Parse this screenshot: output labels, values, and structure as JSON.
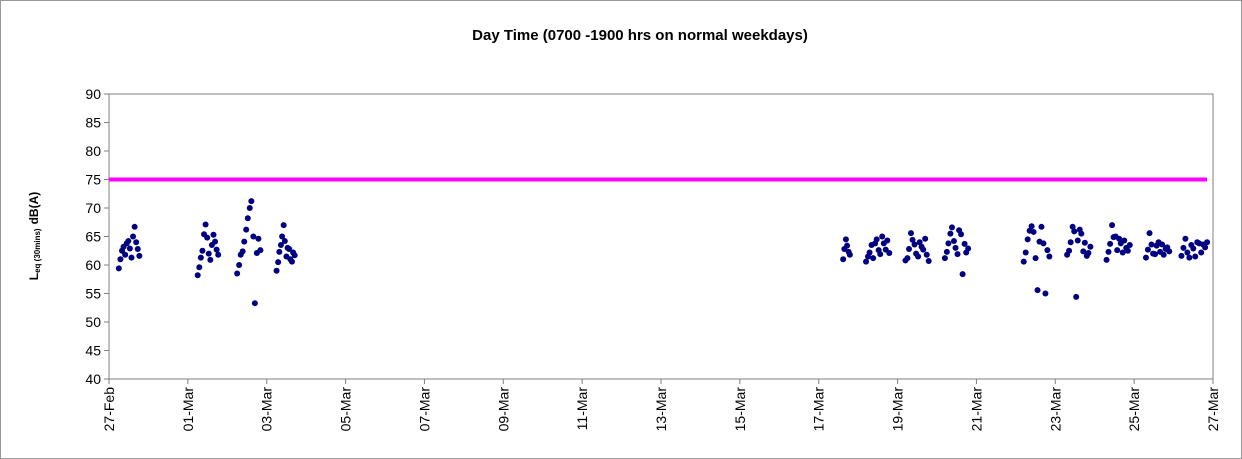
{
  "chart_data": {
    "type": "scatter",
    "title": "Day Time (0700 -1900 hrs on normal weekdays)",
    "y_label": {
      "main": "L",
      "sub": "eq (30mins)",
      "unit": "dB(A)"
    },
    "xlim": [
      0,
      28
    ],
    "xticks": [
      {
        "value": 0,
        "label": "27-Feb"
      },
      {
        "value": 2,
        "label": "01-Mar"
      },
      {
        "value": 4,
        "label": "03-Mar"
      },
      {
        "value": 6,
        "label": "05-Mar"
      },
      {
        "value": 8,
        "label": "07-Mar"
      },
      {
        "value": 10,
        "label": "09-Mar"
      },
      {
        "value": 12,
        "label": "11-Mar"
      },
      {
        "value": 14,
        "label": "13-Mar"
      },
      {
        "value": 16,
        "label": "15-Mar"
      },
      {
        "value": 18,
        "label": "17-Mar"
      },
      {
        "value": 20,
        "label": "19-Mar"
      },
      {
        "value": 22,
        "label": "21-Mar"
      },
      {
        "value": 24,
        "label": "23-Mar"
      },
      {
        "value": 26,
        "label": "25-Mar"
      },
      {
        "value": 28,
        "label": "27-Mar"
      }
    ],
    "ylim": [
      40,
      90
    ],
    "yticks": [
      40,
      45,
      50,
      55,
      60,
      65,
      70,
      75,
      80,
      85,
      90
    ],
    "hline": {
      "value": 75,
      "color": "#ff00ff"
    },
    "series": [
      {
        "color": "#000080",
        "x": [
          0.25,
          0.29,
          0.33,
          0.37,
          0.41,
          0.45,
          0.49,
          0.53,
          0.57,
          0.61,
          0.65,
          0.69,
          0.73,
          0.77,
          2.25,
          2.29,
          2.33,
          2.37,
          2.41,
          2.45,
          2.49,
          2.53,
          2.57,
          2.61,
          2.65,
          2.69,
          2.73,
          2.77,
          3.25,
          3.3,
          3.34,
          3.39,
          3.43,
          3.48,
          3.52,
          3.57,
          3.61,
          3.66,
          3.7,
          3.75,
          3.79,
          3.84,
          4.25,
          4.29,
          4.32,
          4.36,
          4.39,
          4.43,
          4.46,
          4.5,
          4.53,
          4.57,
          4.6,
          4.64,
          4.67,
          4.71,
          18.62,
          18.65,
          18.69,
          18.72,
          18.76,
          18.79,
          19.2,
          19.25,
          19.29,
          19.34,
          19.38,
          19.43,
          19.47,
          19.52,
          19.56,
          19.61,
          19.65,
          19.7,
          19.74,
          19.79,
          20.2,
          20.25,
          20.29,
          20.34,
          20.38,
          20.43,
          20.47,
          20.52,
          20.56,
          20.61,
          20.65,
          20.7,
          20.74,
          20.79,
          21.2,
          21.25,
          21.29,
          21.34,
          21.38,
          21.43,
          21.47,
          21.52,
          21.56,
          21.61,
          21.65,
          21.7,
          21.74,
          21.79,
          23.2,
          23.25,
          23.3,
          23.35,
          23.4,
          23.45,
          23.5,
          23.55,
          23.6,
          23.65,
          23.7,
          23.75,
          23.8,
          23.85,
          24.3,
          24.35,
          24.39,
          24.44,
          24.48,
          24.53,
          24.57,
          24.62,
          24.66,
          24.71,
          24.75,
          24.8,
          24.84,
          24.89,
          25.3,
          25.35,
          25.39,
          25.44,
          25.48,
          25.53,
          25.57,
          25.62,
          25.66,
          25.71,
          25.75,
          25.8,
          25.84,
          25.89,
          26.3,
          26.35,
          26.39,
          26.44,
          26.48,
          26.53,
          26.57,
          26.62,
          26.66,
          26.71,
          26.75,
          26.8,
          26.84,
          26.89,
          27.2,
          27.25,
          27.3,
          27.35,
          27.4,
          27.45,
          27.5,
          27.55,
          27.6,
          27.65,
          27.7,
          27.75,
          27.8,
          27.85
        ],
        "values": [
          59.4,
          61,
          62.5,
          63.2,
          61.8,
          63.8,
          64.2,
          62.9,
          61.3,
          65,
          66.7,
          64,
          62.8,
          61.6,
          58.2,
          59.6,
          61.3,
          62.5,
          65.4,
          67.1,
          64.8,
          62,
          60.9,
          63.5,
          65.3,
          64.1,
          62.7,
          61.8,
          58.5,
          60,
          61.8,
          62.4,
          64.1,
          66.2,
          68.2,
          70,
          71.2,
          65,
          53.3,
          62.1,
          64.6,
          62.6,
          59,
          60.5,
          62.3,
          63.5,
          65,
          67,
          64.2,
          61.5,
          63,
          62.8,
          61,
          60.6,
          62.2,
          61.7,
          61,
          62.8,
          64.5,
          63.4,
          62.3,
          61.8,
          60.6,
          61.5,
          62.2,
          63.5,
          61.2,
          63.8,
          64.5,
          62.6,
          61.9,
          65,
          63.8,
          62.7,
          64.3,
          62.1,
          60.8,
          61.2,
          62.8,
          65.6,
          64.4,
          63.6,
          62,
          61.5,
          64,
          63.2,
          62.7,
          64.6,
          61.8,
          60.7,
          61.2,
          62.3,
          63.8,
          65.5,
          66.6,
          64.2,
          63,
          61.9,
          66.1,
          65.4,
          58.4,
          63.7,
          62.2,
          62.9,
          60.6,
          62.2,
          64.5,
          66,
          66.8,
          65.8,
          61.2,
          55.6,
          64.1,
          66.7,
          63.8,
          55,
          62.6,
          61.5,
          61.8,
          62.5,
          64,
          66.7,
          65.9,
          54.4,
          64.3,
          66.2,
          65.5,
          62.4,
          63.9,
          61.6,
          62.1,
          63.2,
          60.9,
          62.3,
          63.7,
          67,
          64.9,
          65,
          62.6,
          64.6,
          63.8,
          62.2,
          64.3,
          63,
          62.5,
          63.5,
          61.3,
          62.7,
          65.6,
          63.6,
          62,
          61.9,
          63.4,
          64,
          62.3,
          63.6,
          61.8,
          62.8,
          63.1,
          62.4,
          61.6,
          63,
          64.6,
          62.2,
          61.3,
          63.5,
          62.9,
          61.5,
          64,
          63.8,
          62.2,
          63.6,
          63.1,
          64
        ]
      }
    ]
  }
}
